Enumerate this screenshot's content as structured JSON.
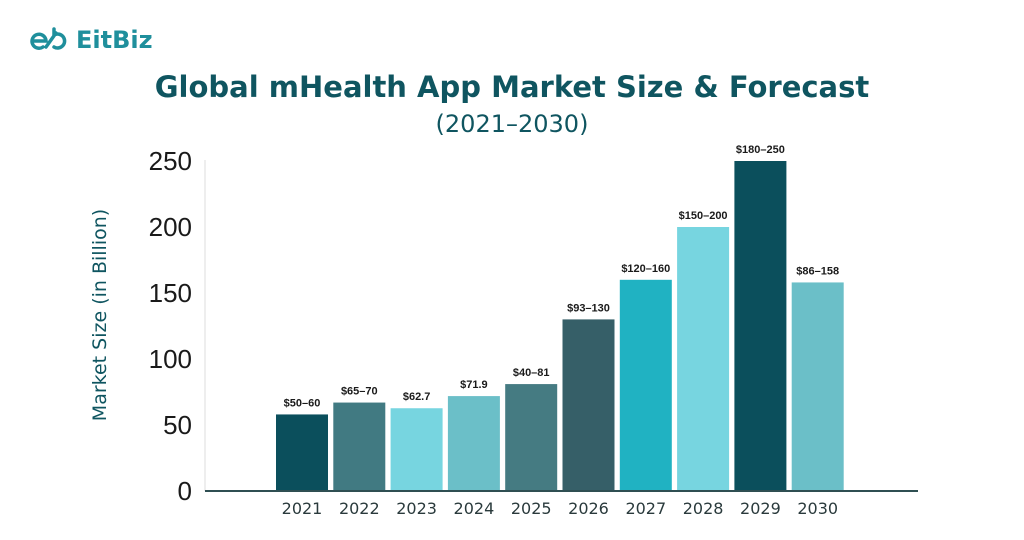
{
  "brand": {
    "name": "EitBiz"
  },
  "chart_data": {
    "type": "bar",
    "title": "Global mHealth App Market Size & Forecast",
    "subtitle": "(2021–2030)",
    "xlabel": "",
    "ylabel": "Market Size (in Billion)",
    "ylim": [
      0,
      250
    ],
    "yticks": [
      "0",
      "50",
      "100",
      "150",
      "200",
      "250"
    ],
    "grid": false,
    "categories": [
      "2021",
      "2022",
      "2023",
      "2024",
      "2025",
      "2026",
      "2027",
      "2028",
      "2029",
      "2030"
    ],
    "values": [
      58,
      67,
      62.7,
      71.9,
      81,
      130,
      160,
      200,
      250,
      158
    ],
    "data_labels": [
      "$50–60",
      "$65–70",
      "$62.7",
      "$71.9",
      "$40–81",
      "$93–130",
      "$120–160",
      "$150–200",
      "$180–250",
      "$86–158"
    ],
    "colors": [
      "#0b4f5c",
      "#417a82",
      "#77d5e0",
      "#6bbfc8",
      "#457b82",
      "#365f68",
      "#20b2c2",
      "#77d5e0",
      "#0b4f5c",
      "#6bbfc8"
    ]
  }
}
